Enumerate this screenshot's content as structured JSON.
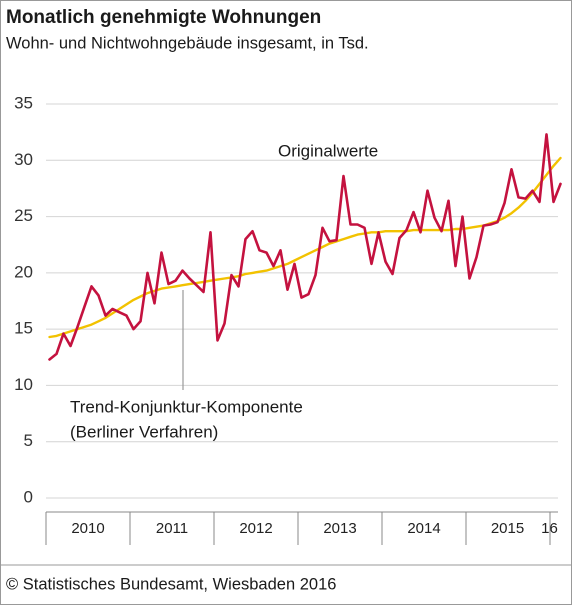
{
  "chart_data": {
    "type": "line",
    "title": "Monatlich genehmigte Wohnungen",
    "subtitle": "Wohn- und Nichtwohngebäude insgesamt, in Tsd.",
    "source": "© Statistisches Bundesamt, Wiesbaden 2016",
    "annotations": [
      "Originalwerte",
      "Trend-Konjunktur-Komponente",
      "(Berliner Verfahren)"
    ],
    "categories": [
      null,
      null,
      null,
      null,
      null,
      null,
      "2010",
      null,
      null,
      null,
      null,
      null,
      null,
      null,
      null,
      null,
      null,
      null,
      "2011",
      null,
      null,
      null,
      null,
      null,
      null,
      null,
      null,
      null,
      null,
      null,
      "2012",
      null,
      null,
      null,
      null,
      null,
      null,
      null,
      null,
      null,
      null,
      null,
      "2013",
      null,
      null,
      null,
      null,
      null,
      null,
      null,
      null,
      null,
      null,
      null,
      "2014",
      null,
      null,
      null,
      null,
      null,
      null,
      null,
      null,
      null,
      null,
      null,
      "2015",
      null,
      null,
      null,
      null,
      null,
      "16",
      null
    ],
    "series": [
      {
        "color": "#c4123f",
        "values": [
          12.3,
          12.8,
          14.6,
          13.5,
          15.2,
          17.0,
          18.8,
          18.0,
          16.2,
          16.8,
          16.5,
          16.2,
          15.0,
          15.7,
          20.0,
          17.3,
          21.8,
          19.0,
          19.3,
          20.2,
          19.5,
          18.9,
          18.3,
          23.6,
          14.0,
          15.5,
          19.8,
          18.8,
          23.0,
          23.7,
          22.0,
          21.8,
          20.6,
          22.0,
          18.5,
          20.8,
          17.8,
          18.1,
          19.8,
          24.0,
          22.8,
          22.9,
          28.6,
          24.3,
          24.3,
          24.0,
          20.8,
          23.6,
          21.0,
          19.9,
          23.1,
          23.8,
          25.4,
          23.6,
          27.3,
          24.9,
          23.7,
          26.4,
          20.6,
          25.0,
          19.5,
          21.4,
          24.2,
          24.3,
          24.5,
          26.2,
          29.2,
          26.7,
          26.6,
          27.3,
          26.3,
          32.3,
          26.3,
          27.9
        ]
      },
      {
        "color": "#f2c200",
        "values": [
          14.3,
          14.4,
          14.6,
          14.8,
          15.0,
          15.2,
          15.4,
          15.7,
          16.0,
          16.4,
          16.8,
          17.2,
          17.6,
          17.9,
          18.2,
          18.4,
          18.6,
          18.7,
          18.8,
          18.9,
          19.0,
          19.1,
          19.2,
          19.3,
          19.4,
          19.5,
          19.6,
          19.7,
          19.9,
          20.0,
          20.1,
          20.2,
          20.4,
          20.6,
          20.8,
          21.1,
          21.4,
          21.7,
          22.0,
          22.3,
          22.6,
          22.8,
          23.0,
          23.2,
          23.4,
          23.5,
          23.6,
          23.6,
          23.7,
          23.7,
          23.7,
          23.7,
          23.8,
          23.8,
          23.8,
          23.8,
          23.8,
          23.8,
          23.9,
          23.9,
          24.0,
          24.1,
          24.2,
          24.4,
          24.6,
          24.9,
          25.3,
          25.8,
          26.4,
          27.1,
          27.9,
          28.7,
          29.5,
          30.2
        ]
      }
    ],
    "ylim": [
      0,
      35
    ],
    "yticks": [
      0,
      5,
      10,
      15,
      20,
      25,
      30,
      35
    ],
    "grid": true
  }
}
